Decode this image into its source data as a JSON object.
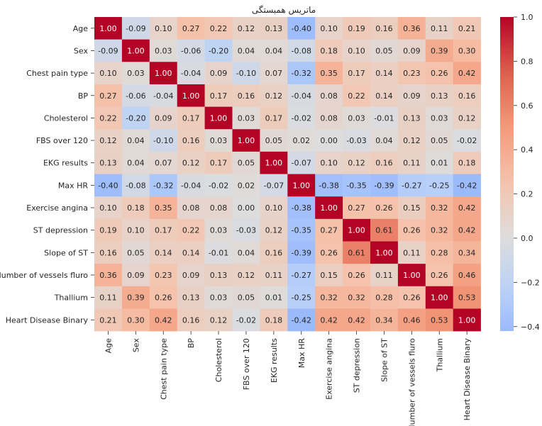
{
  "chart_data": {
    "type": "heatmap",
    "title": "ماتریس همبستگی",
    "variables": [
      "Age",
      "Sex",
      "Chest pain type",
      "BP",
      "Cholesterol",
      "FBS over 120",
      "EKG results",
      "Max HR",
      "Exercise angina",
      "ST depression",
      "Slope of ST",
      "Number of vessels fluro",
      "Thallium",
      "Heart Disease Binary"
    ],
    "matrix": [
      [
        1.0,
        -0.09,
        0.1,
        0.27,
        0.22,
        0.12,
        0.13,
        -0.4,
        0.1,
        0.19,
        0.16,
        0.36,
        0.11,
        0.21
      ],
      [
        -0.09,
        1.0,
        0.03,
        -0.06,
        -0.2,
        0.04,
        0.04,
        -0.08,
        0.18,
        0.1,
        0.05,
        0.09,
        0.39,
        0.3
      ],
      [
        0.1,
        0.03,
        1.0,
        -0.04,
        0.09,
        -0.1,
        0.07,
        -0.32,
        0.35,
        0.17,
        0.14,
        0.23,
        0.26,
        0.42
      ],
      [
        0.27,
        -0.06,
        -0.04,
        1.0,
        0.17,
        0.16,
        0.12,
        -0.04,
        0.08,
        0.22,
        0.14,
        0.09,
        0.13,
        0.16
      ],
      [
        0.22,
        -0.2,
        0.09,
        0.17,
        1.0,
        0.03,
        0.17,
        -0.02,
        0.08,
        0.03,
        -0.01,
        0.13,
        0.03,
        0.12
      ],
      [
        0.12,
        0.04,
        -0.1,
        0.16,
        0.03,
        1.0,
        0.05,
        0.02,
        -0.0,
        -0.03,
        0.04,
        0.12,
        0.05,
        -0.02
      ],
      [
        0.13,
        0.04,
        0.07,
        0.12,
        0.17,
        0.05,
        1.0,
        -0.07,
        0.1,
        0.12,
        0.16,
        0.11,
        0.01,
        0.18
      ],
      [
        -0.4,
        -0.08,
        -0.32,
        -0.04,
        -0.02,
        0.02,
        -0.07,
        1.0,
        -0.38,
        -0.35,
        -0.39,
        -0.27,
        -0.25,
        -0.42
      ],
      [
        0.1,
        0.18,
        0.35,
        0.08,
        0.08,
        -0.0,
        0.1,
        -0.38,
        1.0,
        0.27,
        0.26,
        0.15,
        0.32,
        0.42
      ],
      [
        0.19,
        0.1,
        0.17,
        0.22,
        0.03,
        -0.03,
        0.12,
        -0.35,
        0.27,
        1.0,
        0.61,
        0.26,
        0.32,
        0.42
      ],
      [
        0.16,
        0.05,
        0.14,
        0.14,
        -0.01,
        0.04,
        0.16,
        -0.39,
        0.26,
        0.61,
        1.0,
        0.11,
        0.28,
        0.34
      ],
      [
        0.36,
        0.09,
        0.23,
        0.09,
        0.13,
        0.12,
        0.11,
        -0.27,
        0.15,
        0.26,
        0.11,
        1.0,
        0.26,
        0.46
      ],
      [
        0.11,
        0.39,
        0.26,
        0.13,
        0.03,
        0.05,
        0.01,
        -0.25,
        0.32,
        0.32,
        0.28,
        0.26,
        1.0,
        0.53
      ],
      [
        0.21,
        0.3,
        0.42,
        0.16,
        0.12,
        -0.02,
        0.18,
        -0.42,
        0.42,
        0.42,
        0.34,
        0.46,
        0.53,
        1.0
      ]
    ],
    "value_format": "2 decimals",
    "colormap": "coolwarm",
    "center": 0.0,
    "vmin": -0.42,
    "vmax": 1.0,
    "colorbar_ticks": [
      1.0,
      0.8,
      0.6,
      0.4,
      0.2,
      0.0,
      -0.2,
      -0.4
    ],
    "colorbar_tick_labels": [
      "1.0",
      "0.8",
      "0.6",
      "0.4",
      "0.2",
      "0.0",
      "−0.2",
      "−0.4"
    ],
    "colorbar_placement": "right",
    "grid": false
  }
}
